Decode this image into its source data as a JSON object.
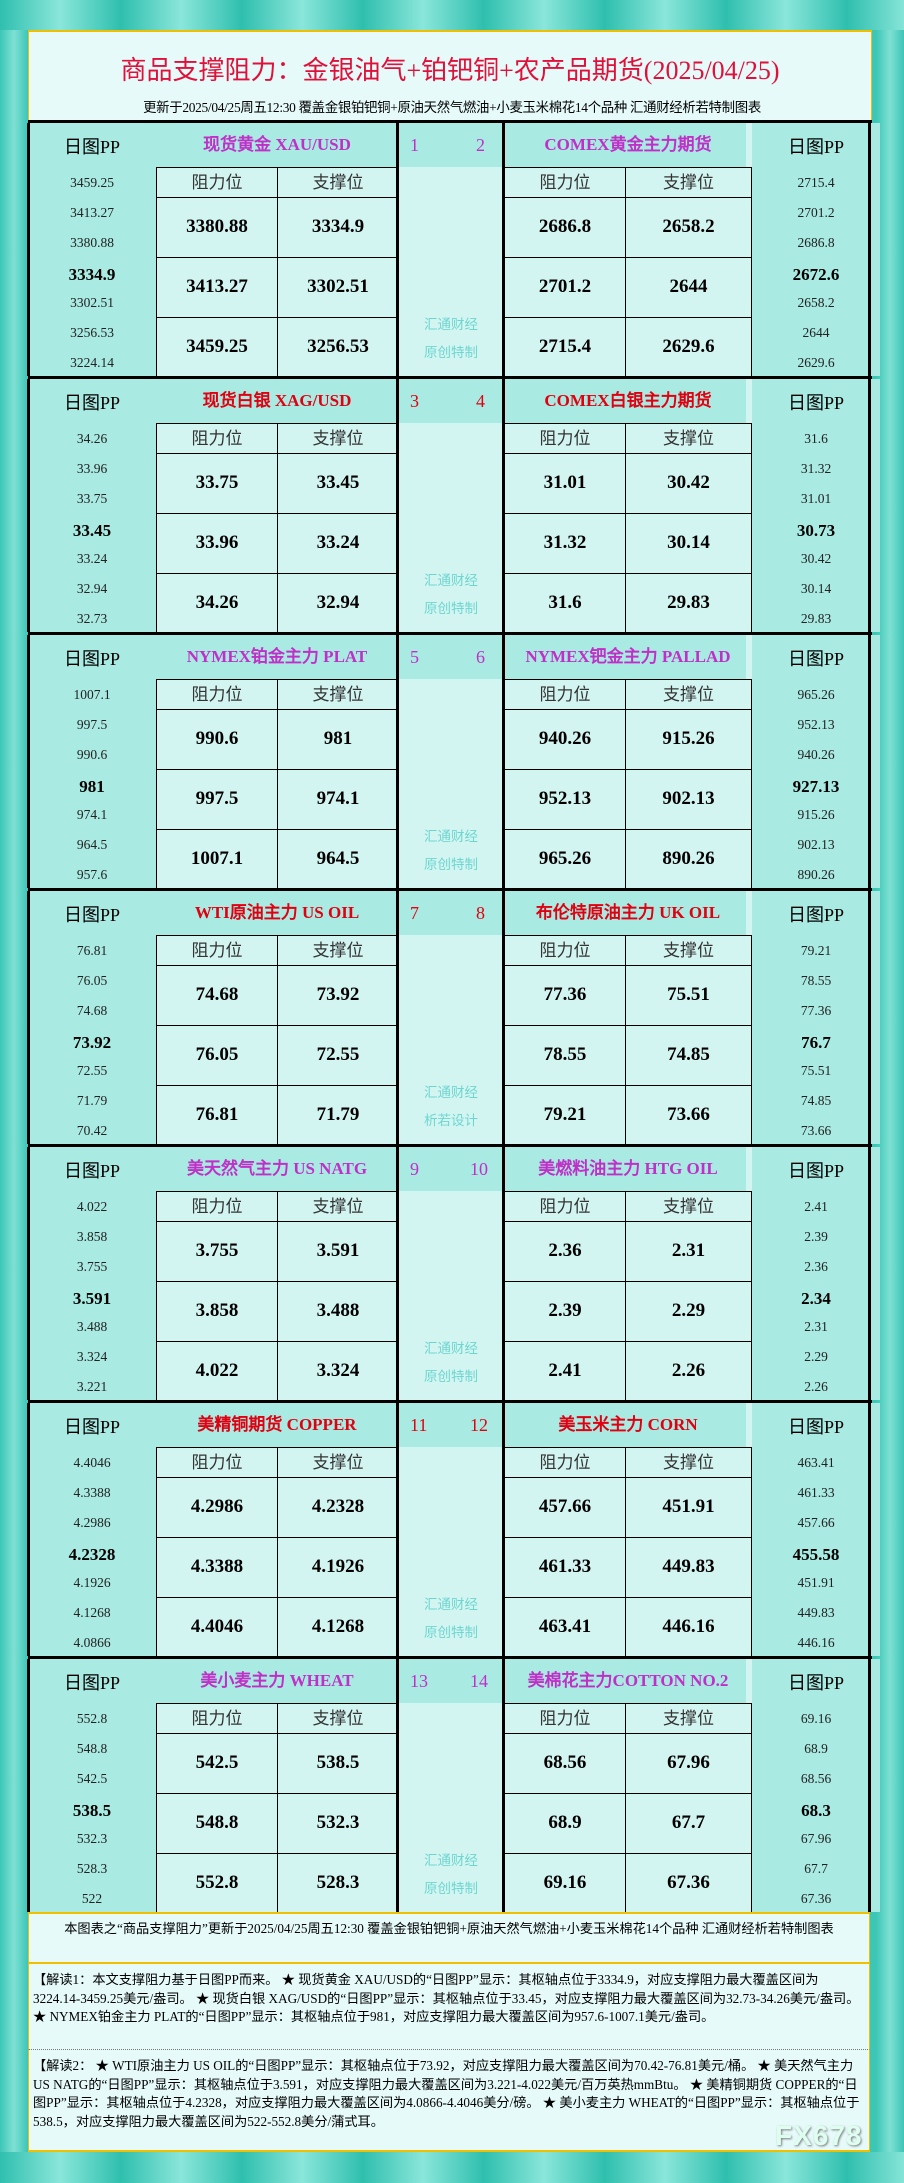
{
  "header": {
    "title": "商品支撑阻力：金银油气+铂钯铜+农产品期货(2025/04/25)",
    "subtitle": "更新于2025/04/25周五12:30 覆盖金银铂钯铜+原油天然气燃油+小麦玉米棉花14个品种 汇通财经析若特制图表"
  },
  "labels": {
    "pp": "日图PP",
    "resistance": "阻力位",
    "support": "支撑位"
  },
  "colors": {
    "purple": "#c030c8",
    "red": "#e00010",
    "frame": "#3cc6b6",
    "cell": "#d3f5f2",
    "pp_column": "#a9eae2"
  },
  "sections": [
    {
      "left": {
        "name": "现货黄金 XAU/USD",
        "num": "1",
        "color": "purple",
        "pp": [
          "3459.25",
          "3413.27",
          "3380.88",
          "3334.9",
          "3302.51",
          "3256.53",
          "3224.14"
        ],
        "rows": [
          [
            "3380.88",
            "3334.9"
          ],
          [
            "3413.27",
            "3302.51"
          ],
          [
            "3459.25",
            "3256.53"
          ]
        ]
      },
      "right": {
        "name": "COMEX黄金主力期货",
        "num": "2",
        "color": "purple",
        "pp": [
          "2715.4",
          "2701.2",
          "2686.8",
          "2672.6",
          "2658.2",
          "2644",
          "2629.6"
        ],
        "rows": [
          [
            "2686.8",
            "2658.2"
          ],
          [
            "2701.2",
            "2644"
          ],
          [
            "2715.4",
            "2629.6"
          ]
        ]
      },
      "credit": [
        "汇通财经",
        "原创特制"
      ]
    },
    {
      "left": {
        "name": "现货白银 XAG/USD",
        "num": "3",
        "color": "red",
        "pp": [
          "34.26",
          "33.96",
          "33.75",
          "33.45",
          "33.24",
          "32.94",
          "32.73"
        ],
        "rows": [
          [
            "33.75",
            "33.45"
          ],
          [
            "33.96",
            "33.24"
          ],
          [
            "34.26",
            "32.94"
          ]
        ]
      },
      "right": {
        "name": "COMEX白银主力期货",
        "num": "4",
        "color": "red",
        "pp": [
          "31.6",
          "31.32",
          "31.01",
          "30.73",
          "30.42",
          "30.14",
          "29.83"
        ],
        "rows": [
          [
            "31.01",
            "30.42"
          ],
          [
            "31.32",
            "30.14"
          ],
          [
            "31.6",
            "29.83"
          ]
        ]
      },
      "credit": [
        "汇通财经",
        "原创特制"
      ]
    },
    {
      "left": {
        "name": "NYMEX铂金主力 PLAT",
        "num": "5",
        "color": "purple",
        "pp": [
          "1007.1",
          "997.5",
          "990.6",
          "981",
          "974.1",
          "964.5",
          "957.6"
        ],
        "rows": [
          [
            "990.6",
            "981"
          ],
          [
            "997.5",
            "974.1"
          ],
          [
            "1007.1",
            "964.5"
          ]
        ]
      },
      "right": {
        "name": "NYMEX钯金主力 PALLAD",
        "num": "6",
        "color": "purple",
        "pp": [
          "965.26",
          "952.13",
          "940.26",
          "927.13",
          "915.26",
          "902.13",
          "890.26"
        ],
        "rows": [
          [
            "940.26",
            "915.26"
          ],
          [
            "952.13",
            "902.13"
          ],
          [
            "965.26",
            "890.26"
          ]
        ]
      },
      "credit": [
        "汇通财经",
        "原创特制"
      ]
    },
    {
      "left": {
        "name": "WTI原油主力 US OIL",
        "num": "7",
        "color": "red",
        "pp": [
          "76.81",
          "76.05",
          "74.68",
          "73.92",
          "72.55",
          "71.79",
          "70.42"
        ],
        "rows": [
          [
            "74.68",
            "73.92"
          ],
          [
            "76.05",
            "72.55"
          ],
          [
            "76.81",
            "71.79"
          ]
        ]
      },
      "right": {
        "name": "布伦特原油主力 UK OIL",
        "num": "8",
        "color": "red",
        "pp": [
          "79.21",
          "78.55",
          "77.36",
          "76.7",
          "75.51",
          "74.85",
          "73.66"
        ],
        "rows": [
          [
            "77.36",
            "75.51"
          ],
          [
            "78.55",
            "74.85"
          ],
          [
            "79.21",
            "73.66"
          ]
        ]
      },
      "credit": [
        "汇通财经",
        "析若设计"
      ]
    },
    {
      "left": {
        "name": "美天然气主力 US NATG",
        "num": "9",
        "color": "purple",
        "pp": [
          "4.022",
          "3.858",
          "3.755",
          "3.591",
          "3.488",
          "3.324",
          "3.221"
        ],
        "rows": [
          [
            "3.755",
            "3.591"
          ],
          [
            "3.858",
            "3.488"
          ],
          [
            "4.022",
            "3.324"
          ]
        ]
      },
      "right": {
        "name": "美燃料油主力 HTG OIL",
        "num": "10",
        "color": "purple",
        "pp": [
          "2.41",
          "2.39",
          "2.36",
          "2.34",
          "2.31",
          "2.29",
          "2.26"
        ],
        "rows": [
          [
            "2.36",
            "2.31"
          ],
          [
            "2.39",
            "2.29"
          ],
          [
            "2.41",
            "2.26"
          ]
        ]
      },
      "credit": [
        "汇通财经",
        "原创特制"
      ]
    },
    {
      "left": {
        "name": "美精铜期货 COPPER",
        "num": "11",
        "color": "red",
        "pp": [
          "4.4046",
          "4.3388",
          "4.2986",
          "4.2328",
          "4.1926",
          "4.1268",
          "4.0866"
        ],
        "rows": [
          [
            "4.2986",
            "4.2328"
          ],
          [
            "4.3388",
            "4.1926"
          ],
          [
            "4.4046",
            "4.1268"
          ]
        ]
      },
      "right": {
        "name": "美玉米主力 CORN",
        "num": "12",
        "color": "red",
        "pp": [
          "463.41",
          "461.33",
          "457.66",
          "455.58",
          "451.91",
          "449.83",
          "446.16"
        ],
        "rows": [
          [
            "457.66",
            "451.91"
          ],
          [
            "461.33",
            "449.83"
          ],
          [
            "463.41",
            "446.16"
          ]
        ]
      },
      "credit": [
        "汇通财经",
        "原创特制"
      ]
    },
    {
      "left": {
        "name": "美小麦主力 WHEAT",
        "num": "13",
        "color": "purple",
        "pp": [
          "552.8",
          "548.8",
          "542.5",
          "538.5",
          "532.3",
          "528.3",
          "522"
        ],
        "rows": [
          [
            "542.5",
            "538.5"
          ],
          [
            "548.8",
            "532.3"
          ],
          [
            "552.8",
            "528.3"
          ]
        ]
      },
      "right": {
        "name": "美棉花主力COTTON NO.2",
        "num": "14",
        "color": "purple",
        "pp": [
          "69.16",
          "68.9",
          "68.56",
          "68.3",
          "67.96",
          "67.7",
          "67.36"
        ],
        "rows": [
          [
            "68.56",
            "67.96"
          ],
          [
            "68.9",
            "67.7"
          ],
          [
            "69.16",
            "67.36"
          ]
        ]
      },
      "credit": [
        "汇通财经",
        "原创特制"
      ]
    }
  ],
  "footer": {
    "note": "本图表之“商品支撑阻力”更新于2025/04/25周五12:30 覆盖金银铂钯铜+原油天然气燃油+小麦玉米棉花14个品种 汇通财经析若特制图表",
    "explain1": "【解读1：本文支撑阻力基于日图PP而来。 ★ 现货黄金 XAU/USD的“日图PP”显示：其枢轴点位于3334.9，对应支撑阻力最大覆盖区间为3224.14-3459.25美元/盎司。 ★ 现货白银 XAG/USD的“日图PP”显示：其枢轴点位于33.45，对应支撑阻力最大覆盖区间为32.73-34.26美元/盎司。 ★ NYMEX铂金主力 PLAT的“日图PP”显示：其枢轴点位于981，对应支撑阻力最大覆盖区间为957.6-1007.1美元/盎司。",
    "explain2": "【解读2： ★ WTI原油主力 US OIL的“日图PP”显示：其枢轴点位于73.92，对应支撑阻力最大覆盖区间为70.42-76.81美元/桶。 ★ 美天然气主力 US NATG的“日图PP”显示：其枢轴点位于3.591，对应支撑阻力最大覆盖区间为3.221-4.022美元/百万英热mmBtu。 ★ 美精铜期货 COPPER的“日图PP”显示：其枢轴点位于4.2328，对应支撑阻力最大覆盖区间为4.0866-4.4046美分/磅。 ★ 美小麦主力 WHEAT的“日图PP”显示：其枢轴点位于538.5，对应支撑阻力最大覆盖区间为522-552.8美分/蒲式耳。",
    "watermark": "FX678"
  }
}
